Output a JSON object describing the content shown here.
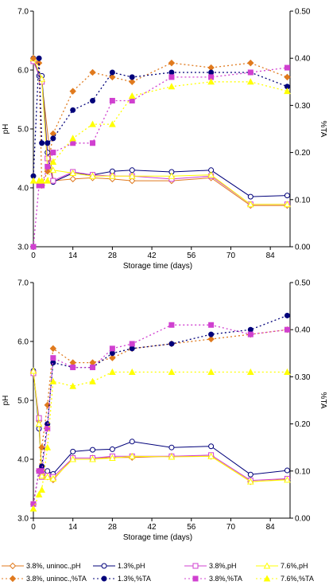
{
  "chart_data": [
    {
      "type": "line",
      "xlabel": "Storage time (days)",
      "ylabel": "pH",
      "y2label": "%TA",
      "xticks": [
        0,
        14,
        28,
        42,
        56,
        70,
        84
      ],
      "yticks": [
        "3.0",
        "4.0",
        "5.0",
        "6.0",
        "7.0"
      ],
      "y2ticks": [
        "0.00",
        "0.10",
        "0.20",
        "0.30",
        "0.40",
        "0.50"
      ],
      "xlim": [
        0,
        91
      ],
      "ylim": [
        3,
        7
      ],
      "y2lim": [
        0,
        0.5
      ],
      "series": [
        {
          "name": "3.8%, uninoc.,pH",
          "axis": "pH",
          "color": "#E07A1E",
          "dash": "",
          "marker": "diamond-open",
          "x": [
            0,
            3,
            7,
            14,
            21,
            28,
            35,
            49,
            63,
            77,
            90
          ],
          "y": [
            6.15,
            5.8,
            4.12,
            4.15,
            4.17,
            4.15,
            4.12,
            4.12,
            4.17,
            3.7,
            3.7
          ]
        },
        {
          "name": "1.3%,pH",
          "axis": "pH",
          "color": "#00007A",
          "dash": "",
          "marker": "circle-open",
          "x": [
            0,
            2,
            3,
            5,
            7,
            14,
            21,
            28,
            35,
            49,
            63,
            77,
            90
          ],
          "y": [
            6.2,
            5.9,
            5.9,
            4.6,
            4.1,
            4.25,
            4.22,
            4.28,
            4.3,
            4.27,
            4.3,
            3.85,
            3.87
          ]
        },
        {
          "name": "3.8%,pH",
          "axis": "pH",
          "color": "#D040D0",
          "dash": "",
          "marker": "square-open",
          "x": [
            0,
            3,
            5,
            7,
            14,
            21,
            28,
            35,
            49,
            63,
            77,
            90
          ],
          "y": [
            6.15,
            5.8,
            4.5,
            4.12,
            4.27,
            4.22,
            4.2,
            4.2,
            4.15,
            4.2,
            3.72,
            3.72
          ]
        },
        {
          "name": "7.6%,pH",
          "axis": "pH",
          "color": "#FFFF00",
          "dash": "",
          "marker": "triangle-open",
          "x": [
            0,
            3,
            5,
            7,
            14,
            21,
            28,
            35,
            49,
            63,
            77,
            90
          ],
          "y": [
            6.2,
            5.85,
            4.35,
            4.3,
            4.25,
            4.2,
            4.2,
            4.2,
            4.2,
            4.22,
            3.72,
            3.72
          ]
        },
        {
          "name": "3.8%, uninoc.,%TA",
          "axis": "TA",
          "color": "#E07A1E",
          "dash": "2,3",
          "marker": "diamond",
          "x": [
            0,
            2,
            3,
            5,
            7,
            14,
            21,
            28,
            35,
            49,
            63,
            77,
            90
          ],
          "y": [
            0.4,
            0.39,
            0.13,
            0.16,
            0.24,
            0.33,
            0.37,
            0.36,
            0.35,
            0.39,
            0.38,
            0.39,
            0.36
          ]
        },
        {
          "name": "1.3%,%TA",
          "axis": "TA",
          "color": "#00007A",
          "dash": "2,3",
          "marker": "circle",
          "x": [
            0,
            2,
            3,
            5,
            7,
            14,
            21,
            28,
            35,
            49,
            63,
            77,
            90
          ],
          "y": [
            0.15,
            0.4,
            0.22,
            0.22,
            0.23,
            0.29,
            0.31,
            0.37,
            0.36,
            0.37,
            0.37,
            0.37,
            0.34
          ]
        },
        {
          "name": "3.8%,%TA",
          "axis": "TA",
          "color": "#D040D0",
          "dash": "2,3",
          "marker": "square",
          "x": [
            0,
            2,
            3,
            5,
            7,
            14,
            21,
            28,
            35,
            49,
            63,
            77,
            90
          ],
          "y": [
            0.0,
            0.13,
            0.13,
            0.17,
            0.2,
            0.22,
            0.22,
            0.31,
            0.31,
            0.36,
            0.36,
            0.37,
            0.38
          ]
        },
        {
          "name": "7.6%,%TA",
          "axis": "TA",
          "color": "#FFFF00",
          "dash": "2,3",
          "marker": "triangle",
          "x": [
            0,
            2,
            3,
            5,
            7,
            14,
            21,
            28,
            35,
            49,
            63,
            77,
            90
          ],
          "y": [
            0.14,
            0.14,
            0.14,
            0.14,
            0.18,
            0.23,
            0.26,
            0.26,
            0.32,
            0.34,
            0.35,
            0.35,
            0.33
          ]
        }
      ]
    },
    {
      "type": "line",
      "xlabel": "Storage time (days)",
      "ylabel": "pH",
      "y2label": "%TA",
      "xticks": [
        0,
        14,
        28,
        42,
        56,
        70,
        84
      ],
      "yticks": [
        "3.0",
        "4.0",
        "5.0",
        "6.0",
        "7.0"
      ],
      "y2ticks": [
        "0.00",
        "0.10",
        "0.20",
        "0.30",
        "0.40",
        "0.50"
      ],
      "xlim": [
        0,
        91
      ],
      "ylim": [
        3,
        7
      ],
      "y2lim": [
        0,
        0.5
      ],
      "series": [
        {
          "name": "3.8%, uninoc.,pH",
          "axis": "pH",
          "color": "#E07A1E",
          "dash": "",
          "marker": "diamond-open",
          "x": [
            0,
            2,
            3,
            5,
            7,
            14,
            21,
            28,
            35,
            49,
            63,
            77,
            90
          ],
          "y": [
            5.47,
            4.65,
            3.75,
            3.7,
            3.65,
            4.02,
            4.02,
            4.03,
            4.03,
            4.05,
            4.05,
            3.62,
            3.66
          ]
        },
        {
          "name": "1.3%,pH",
          "axis": "pH",
          "color": "#00007A",
          "dash": "",
          "marker": "circle-open",
          "x": [
            0,
            2,
            3,
            5,
            7,
            14,
            21,
            28,
            35,
            49,
            63,
            77,
            90
          ],
          "y": [
            5.5,
            4.52,
            3.8,
            3.8,
            3.75,
            4.13,
            4.16,
            4.17,
            4.3,
            4.2,
            4.22,
            3.74,
            3.81
          ]
        },
        {
          "name": "3.8%,pH",
          "axis": "pH",
          "color": "#D040D0",
          "dash": "",
          "marker": "square-open",
          "x": [
            0,
            2,
            3,
            5,
            7,
            14,
            21,
            28,
            35,
            49,
            63,
            77,
            90
          ],
          "y": [
            5.46,
            4.7,
            3.7,
            3.72,
            3.7,
            4.02,
            4.02,
            4.05,
            4.05,
            4.05,
            4.07,
            3.64,
            3.67
          ]
        },
        {
          "name": "7.6%,pH",
          "axis": "pH",
          "color": "#FFFF00",
          "dash": "",
          "marker": "triangle-open",
          "x": [
            0,
            2,
            3,
            5,
            7,
            14,
            21,
            28,
            35,
            49,
            63,
            77,
            90
          ],
          "y": [
            5.5,
            4.6,
            3.72,
            3.7,
            3.67,
            4.0,
            4.0,
            4.02,
            4.05,
            4.04,
            4.05,
            3.62,
            3.65
          ]
        },
        {
          "name": "3.8%, uninoc.,%TA",
          "axis": "TA",
          "color": "#E07A1E",
          "dash": "2,3",
          "marker": "diamond",
          "x": [
            0,
            2,
            3,
            5,
            7,
            14,
            21,
            28,
            35,
            49,
            63,
            77,
            90
          ],
          "y": [
            0.03,
            0.1,
            0.15,
            0.24,
            0.36,
            0.33,
            0.33,
            0.34,
            0.36,
            0.37,
            0.38,
            0.39,
            0.4
          ]
        },
        {
          "name": "1.3%,%TA",
          "axis": "TA",
          "color": "#00007A",
          "dash": "2,3",
          "marker": "circle",
          "x": [
            0,
            2,
            3,
            5,
            7,
            14,
            21,
            28,
            35,
            49,
            63,
            77,
            90
          ],
          "y": [
            0.03,
            0.1,
            0.11,
            0.2,
            0.33,
            0.32,
            0.32,
            0.35,
            0.36,
            0.37,
            0.39,
            0.4,
            0.43
          ]
        },
        {
          "name": "3.8%,%TA",
          "axis": "TA",
          "color": "#D040D0",
          "dash": "2,3",
          "marker": "square",
          "x": [
            0,
            2,
            3,
            5,
            7,
            14,
            21,
            28,
            35,
            49,
            63,
            77,
            90
          ],
          "y": [
            0.03,
            0.1,
            0.1,
            0.19,
            0.34,
            0.32,
            0.32,
            0.36,
            0.37,
            0.41,
            0.41,
            0.39,
            0.4
          ]
        },
        {
          "name": "7.6%,%TA",
          "axis": "TA",
          "color": "#FFFF00",
          "dash": "2,3",
          "marker": "triangle",
          "x": [
            0,
            2,
            3,
            5,
            7,
            14,
            21,
            28,
            35,
            49,
            63,
            77,
            90
          ],
          "y": [
            0.02,
            0.05,
            0.06,
            0.15,
            0.29,
            0.28,
            0.29,
            0.31,
            0.31,
            0.31,
            0.31,
            0.31,
            0.31
          ]
        }
      ]
    }
  ]
}
